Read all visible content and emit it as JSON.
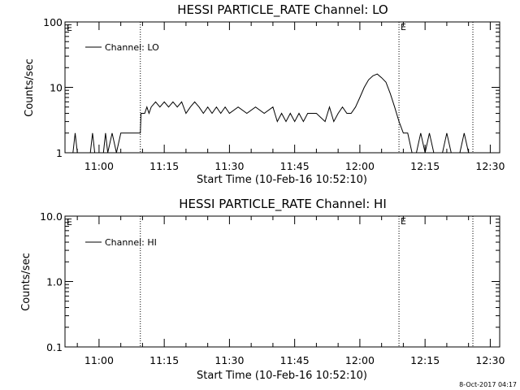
{
  "footer_timestamp": "8-Oct-2017 04:17",
  "colors": {
    "background": "#ffffff",
    "foreground": "#000000"
  },
  "chart_data": [
    {
      "type": "line",
      "title": "HESSI PARTICLE_RATE Channel: LO",
      "xlabel": "Start Time (10-Feb-16 10:52:10)",
      "ylabel": "Counts/sec",
      "yscale": "log",
      "ylim": [
        1,
        100
      ],
      "y_tick_labels": [
        "1",
        "10",
        "100"
      ],
      "x_tick_labels": [
        "11:00",
        "11:15",
        "11:30",
        "11:45",
        "12:00",
        "12:15",
        "12:30"
      ],
      "xlim": [
        "10:52:10",
        "12:32:10"
      ],
      "legend": "top-left",
      "vertical_markers": [
        {
          "time": "11:09:30",
          "label": ""
        },
        {
          "time": "12:09:00",
          "label": "E"
        },
        {
          "time": "12:26:00",
          "label": ""
        }
      ],
      "corner_label": "E",
      "series": [
        {
          "name": "Channel: LO",
          "x_minutes_after_10_52_10": [],
          "points": [
            [
              "10:52:10",
              null
            ],
            [
              "10:54:00",
              0
            ],
            [
              "10:54:30",
              2
            ],
            [
              "10:55:00",
              0
            ],
            [
              "10:58:00",
              0
            ],
            [
              "10:58:30",
              2
            ],
            [
              "10:59:00",
              0
            ],
            [
              "11:01:00",
              0
            ],
            [
              "11:01:30",
              2
            ],
            [
              "11:02:00",
              0
            ],
            [
              "11:03:00",
              2
            ],
            [
              "11:04:00",
              0
            ],
            [
              "11:05:00",
              2
            ],
            [
              "11:06:00",
              2
            ],
            [
              "11:07:00",
              2
            ],
            [
              "11:08:30",
              2
            ],
            [
              "11:09:30",
              2
            ],
            [
              "11:09:40",
              4
            ],
            [
              "11:10:30",
              4
            ],
            [
              "11:11:00",
              5
            ],
            [
              "11:11:30",
              4
            ],
            [
              "11:12:00",
              5
            ],
            [
              "11:13:00",
              6
            ],
            [
              "11:14:00",
              5
            ],
            [
              "11:15:00",
              6
            ],
            [
              "11:16:00",
              5
            ],
            [
              "11:17:00",
              6
            ],
            [
              "11:18:00",
              5
            ],
            [
              "11:19:00",
              6
            ],
            [
              "11:20:00",
              4
            ],
            [
              "11:21:00",
              5
            ],
            [
              "11:22:00",
              6
            ],
            [
              "11:23:00",
              5
            ],
            [
              "11:24:00",
              4
            ],
            [
              "11:25:00",
              5
            ],
            [
              "11:26:00",
              4
            ],
            [
              "11:27:00",
              5
            ],
            [
              "11:28:00",
              4
            ],
            [
              "11:29:00",
              5
            ],
            [
              "11:30:00",
              4
            ],
            [
              "11:32:00",
              5
            ],
            [
              "11:34:00",
              4
            ],
            [
              "11:36:00",
              5
            ],
            [
              "11:38:00",
              4
            ],
            [
              "11:40:00",
              5
            ],
            [
              "11:41:00",
              3
            ],
            [
              "11:42:00",
              4
            ],
            [
              "11:43:00",
              3
            ],
            [
              "11:44:00",
              4
            ],
            [
              "11:45:00",
              3
            ],
            [
              "11:46:00",
              4
            ],
            [
              "11:47:00",
              3
            ],
            [
              "11:48:00",
              4
            ],
            [
              "11:50:00",
              4
            ],
            [
              "11:52:00",
              3
            ],
            [
              "11:53:00",
              5
            ],
            [
              "11:54:00",
              3
            ],
            [
              "11:55:00",
              4
            ],
            [
              "11:56:00",
              5
            ],
            [
              "11:57:00",
              4
            ],
            [
              "11:58:00",
              4
            ],
            [
              "11:59:00",
              5
            ],
            [
              "12:00:00",
              7
            ],
            [
              "12:01:00",
              10
            ],
            [
              "12:02:00",
              13
            ],
            [
              "12:03:00",
              15
            ],
            [
              "12:04:00",
              16
            ],
            [
              "12:05:00",
              14
            ],
            [
              "12:06:00",
              12
            ],
            [
              "12:07:00",
              8
            ],
            [
              "12:08:00",
              5
            ],
            [
              "12:09:00",
              3
            ],
            [
              "12:10:00",
              2
            ],
            [
              "12:11:00",
              2
            ],
            [
              "12:12:00",
              1
            ],
            [
              "12:13:00",
              0
            ],
            [
              "12:14:00",
              2
            ],
            [
              "12:15:00",
              0
            ],
            [
              "12:16:00",
              2
            ],
            [
              "12:17:00",
              0
            ],
            [
              "12:19:00",
              0
            ],
            [
              "12:20:00",
              2
            ],
            [
              "12:21:00",
              0
            ],
            [
              "12:23:00",
              0
            ],
            [
              "12:24:00",
              2
            ],
            [
              "12:25:00",
              0
            ],
            [
              "12:26:00",
              0
            ]
          ]
        }
      ]
    },
    {
      "type": "line",
      "title": "HESSI PARTICLE_RATE Channel: HI",
      "xlabel": "Start Time (10-Feb-16 10:52:10)",
      "ylabel": "Counts/sec",
      "yscale": "log",
      "ylim": [
        0.1,
        10
      ],
      "y_tick_labels": [
        "0.1",
        "1.0",
        "10.0"
      ],
      "x_tick_labels": [
        "11:00",
        "11:15",
        "11:30",
        "11:45",
        "12:00",
        "12:15",
        "12:30"
      ],
      "xlim": [
        "10:52:10",
        "12:32:10"
      ],
      "legend": "top-left",
      "vertical_markers": [
        {
          "time": "11:09:30",
          "label": ""
        },
        {
          "time": "12:09:00",
          "label": "E"
        },
        {
          "time": "12:26:00",
          "label": ""
        }
      ],
      "corner_label": "E",
      "series": [
        {
          "name": "Channel: HI",
          "points": []
        }
      ]
    }
  ]
}
